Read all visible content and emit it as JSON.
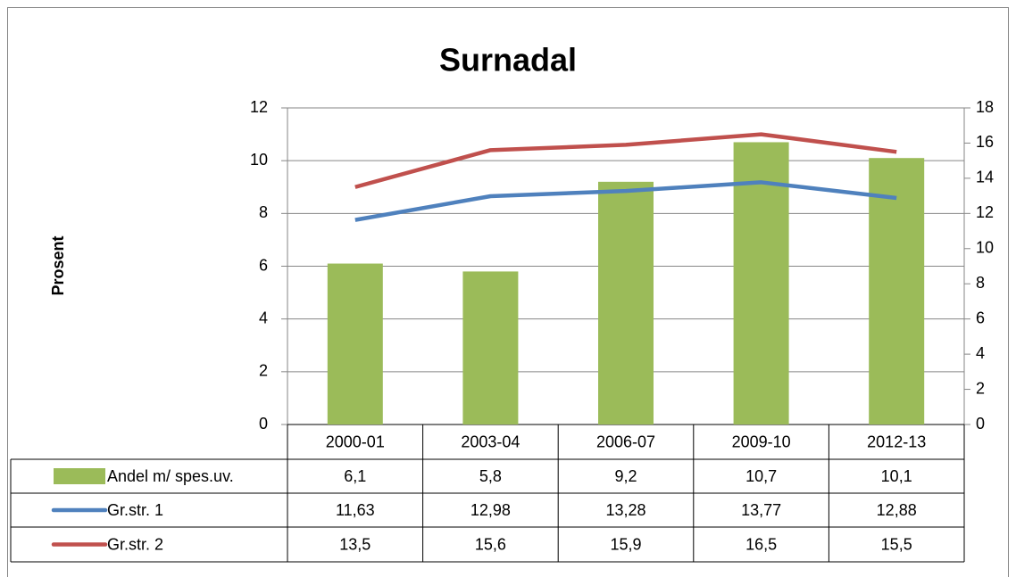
{
  "chart_data": {
    "type": "combo",
    "title": "Surnadal",
    "y_label": "Prosent",
    "categories": [
      "2000-01",
      "2003-04",
      "2006-07",
      "2009-10",
      "2012-13"
    ],
    "series": [
      {
        "name": "Andel m/ spes.uv.",
        "type": "bar",
        "color": "#9bbb59",
        "values": [
          6.1,
          5.8,
          9.2,
          10.7,
          10.1
        ],
        "value_labels": [
          "6,1",
          "5,8",
          "9,2",
          "10,7",
          "10,1"
        ]
      },
      {
        "name": "Gr.str. 1",
        "type": "line",
        "axis": "y2",
        "color": "#4f81bd",
        "values": [
          11.63,
          12.98,
          13.28,
          13.77,
          12.88
        ],
        "value_labels": [
          "11,63",
          "12,98",
          "13,28",
          "13,77",
          "12,88"
        ]
      },
      {
        "name": "Gr.str. 2",
        "type": "line",
        "axis": "y2",
        "color": "#c0504d",
        "values": [
          13.5,
          15.6,
          15.9,
          16.5,
          15.5
        ],
        "value_labels": [
          "13,5",
          "15,6",
          "15,9",
          "16,5",
          "15,5"
        ]
      }
    ],
    "ylim": [
      0,
      12
    ],
    "yticks": [
      0,
      2,
      4,
      6,
      8,
      10,
      12
    ],
    "y2lim": [
      0,
      18
    ],
    "y2ticks": [
      0,
      2,
      4,
      6,
      8,
      10,
      12,
      14,
      16,
      18
    ],
    "grid": true
  }
}
